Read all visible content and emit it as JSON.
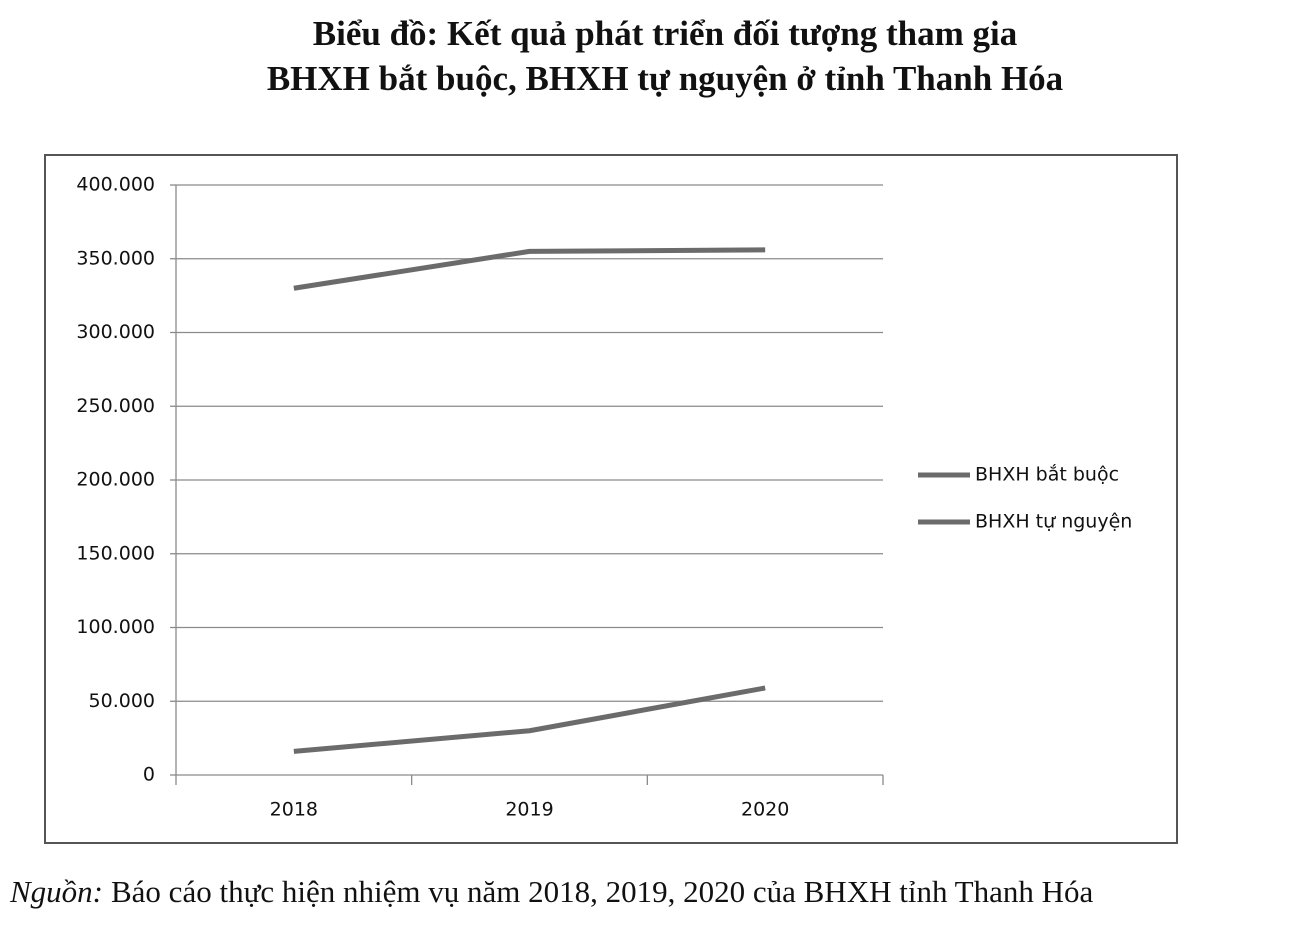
{
  "chart_data": {
    "type": "line",
    "title": [
      "Biểu đồ: Kết quả phát triển đối tượng tham gia",
      "BHXH bắt buộc, BHXH tự nguyện ở tỉnh Thanh Hóa"
    ],
    "categories": [
      "2018",
      "2019",
      "2020"
    ],
    "series": [
      {
        "name": "BHXH bắt buộc",
        "color": "#6b6b6b",
        "values": [
          330000,
          355000,
          356000
        ]
      },
      {
        "name": "BHXH tự nguyện",
        "color": "#6b6b6b",
        "values": [
          16000,
          30000,
          59000
        ]
      }
    ],
    "ylim": [
      0,
      400000
    ],
    "yticks": [
      0,
      {
        "value": 50000,
        "label": "50.000"
      },
      {
        "value": 100000,
        "label": "100.000"
      },
      {
        "value": 150000,
        "label": "150.000"
      },
      {
        "value": 200000,
        "label": "200.000"
      },
      {
        "value": 250000,
        "label": "250.000"
      },
      {
        "value": 300000,
        "label": "300.000"
      },
      {
        "value": 350000,
        "label": "350.000"
      },
      {
        "value": 400000,
        "label": "400.000"
      }
    ],
    "grid": true,
    "legend": "right",
    "source_label": "Nguồn:",
    "source": "Báo cáo thực hiện nhiệm vụ năm 2018, 2019, 2020 của BHXH tỉnh Thanh Hóa"
  }
}
